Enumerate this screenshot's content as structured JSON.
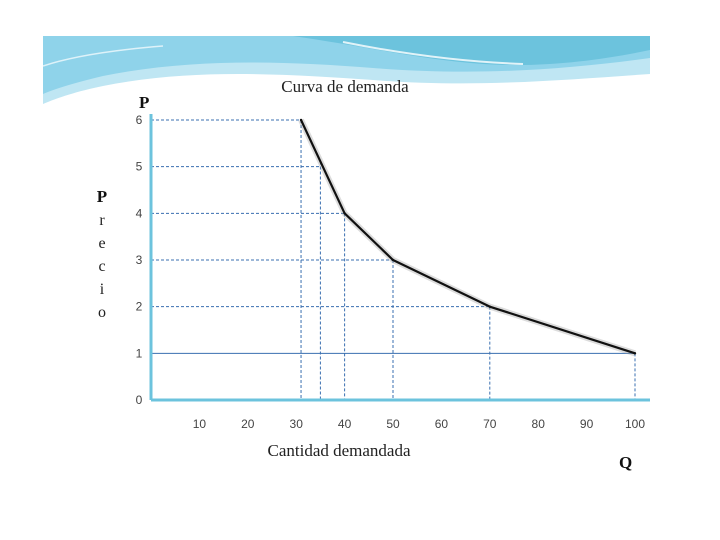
{
  "chart_data": {
    "type": "line",
    "title": "Curva de demanda",
    "xlabel": "Cantidad demandada",
    "ylabel": "Precio",
    "x_axis_letter": "Q",
    "y_axis_letter": "P",
    "x": [
      31,
      40,
      50,
      70,
      100
    ],
    "y": [
      6,
      4,
      3,
      2,
      1
    ],
    "xlim": [
      0,
      100
    ],
    "ylim": [
      0,
      6
    ],
    "x_ticks": [
      "10",
      "20",
      "30",
      "40",
      "50",
      "60",
      "70",
      "80",
      "90",
      "100"
    ],
    "y_ticks": [
      "0",
      "1",
      "2",
      "3",
      "4",
      "5",
      "6"
    ],
    "guides": {
      "horizontal": [
        {
          "y": 6,
          "x_end": 31
        },
        {
          "y": 5,
          "x_end": 35
        },
        {
          "y": 4,
          "x_end": 40
        },
        {
          "y": 3,
          "x_end": 50
        },
        {
          "y": 2,
          "x_end": 70
        }
      ],
      "vertical": [
        31,
        35,
        40,
        50,
        70,
        100
      ],
      "solid_horizontal": {
        "y": 1,
        "x_end": 100
      }
    },
    "grid": false,
    "legend": "none",
    "colors": {
      "curve": "#111111",
      "guides": "#3a6fb0",
      "axes": "#6cc3dd",
      "banner": "#8fd3ea"
    }
  }
}
